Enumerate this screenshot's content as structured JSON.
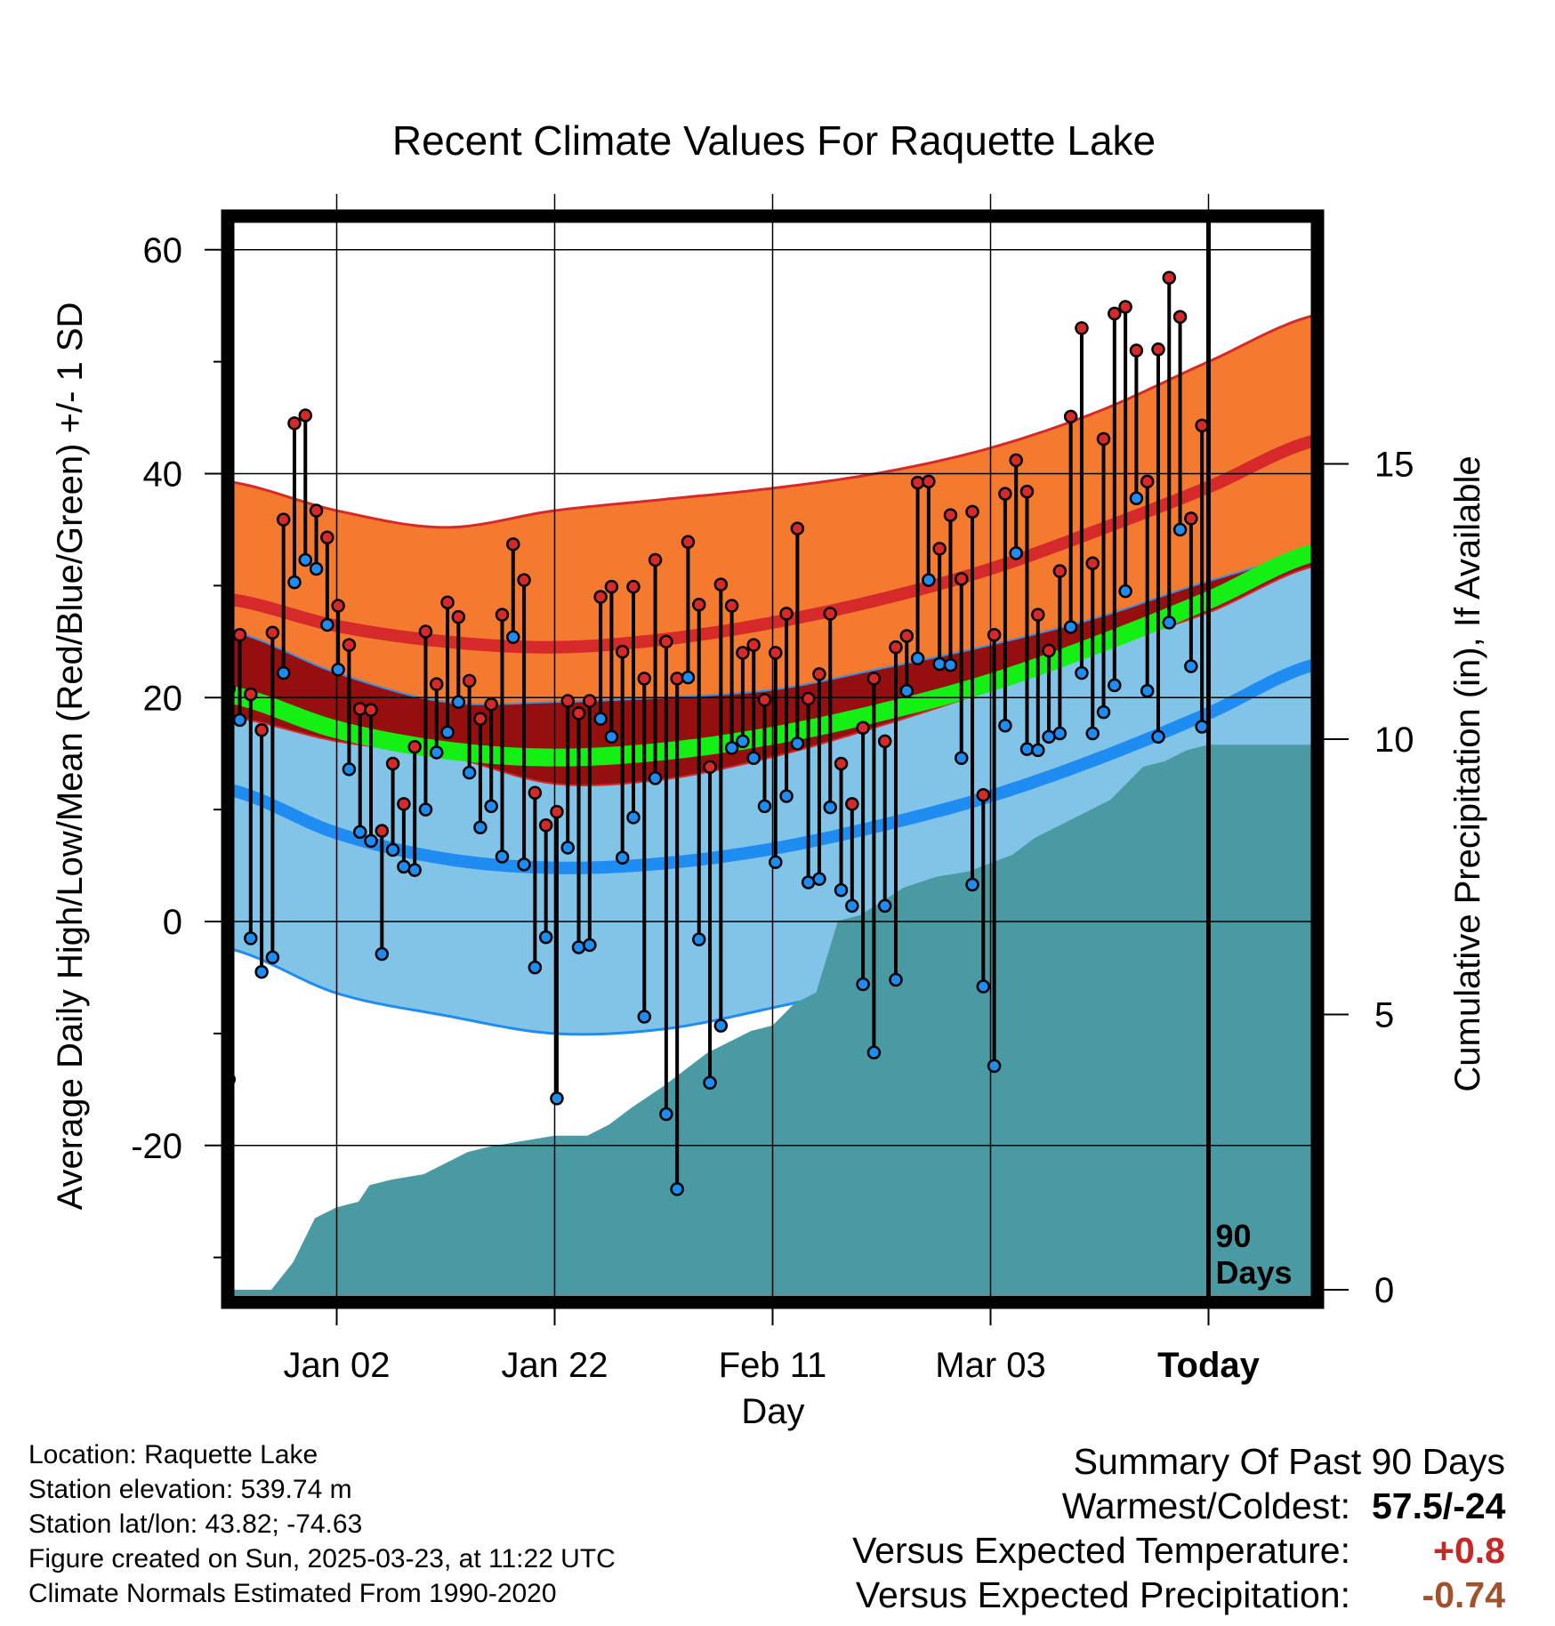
{
  "chart_data": {
    "type": "line",
    "title": "Recent Climate Values For Raquette Lake",
    "xlabel": "Day",
    "ylabel": "Average Daily High/Low/Mean (Red/Blue/Green) +/- 1 SD",
    "y2label": "Cumulative Precipitation (in), If Available",
    "ylim": [
      -34,
      63
    ],
    "y2lim": [
      0,
      19.5
    ],
    "xlim": [
      -10,
      90
    ],
    "yticks": [
      "60",
      "40",
      "20",
      "0",
      "-20"
    ],
    "y2ticks": [
      "15",
      "10",
      "5",
      "0"
    ],
    "xticks": [
      {
        "day": 0,
        "label": "Jan 02"
      },
      {
        "day": 20,
        "label": "Jan 22"
      },
      {
        "day": 40,
        "label": "Feb 11"
      },
      {
        "day": 60,
        "label": "Mar 03"
      },
      {
        "day": 80,
        "label": "Today"
      }
    ],
    "today_marker": {
      "day": 80,
      "label1": "90",
      "label2": "Days"
    },
    "colors": {
      "high_band": "#f47a2f",
      "high_mean": "#d62a2a",
      "low_band": "#82c3e8",
      "low_mean": "#1e8cf0",
      "overlap": "#960f0f",
      "mean": "#14f014",
      "precip": "#4a9aa3",
      "frame": "#000000"
    },
    "normals": {
      "days": [
        -10,
        0,
        10,
        20,
        30,
        40,
        50,
        60,
        70,
        80,
        90
      ],
      "high_mean": [
        28.8,
        26.4,
        25.0,
        24.5,
        25.2,
        26.7,
        28.8,
        31.5,
        35.0,
        38.8,
        43.0
      ],
      "high_sd": [
        10.5,
        10.3,
        10.2,
        12.2,
        12.5,
        12.0,
        11.3,
        10.8,
        10.6,
        11.2,
        11.2
      ],
      "low_mean": [
        11.8,
        7.9,
        5.6,
        4.8,
        5.2,
        6.5,
        8.6,
        11.2,
        14.6,
        18.6,
        23.0
      ],
      "low_sd": [
        14.2,
        14.3,
        14.0,
        14.8,
        14.8,
        14.2,
        14.0,
        13.5,
        12.6,
        11.8,
        9.8
      ]
    },
    "series": [
      {
        "name": "high",
        "values": [
          20.8,
          25.6,
          20.3,
          17.1,
          25.8,
          35.9,
          44.5,
          45.2,
          36.7,
          34.3,
          28.2,
          24.7,
          19.0,
          18.9,
          8.1,
          14.1,
          10.5,
          15.6,
          25.9,
          21.2,
          28.5,
          27.2,
          21.5,
          18.1,
          19.4,
          27.4,
          33.7,
          30.5,
          11.5,
          8.6,
          9.8,
          19.7,
          18.6,
          19.7,
          29.0,
          29.9,
          24.1,
          29.9,
          21.7,
          32.3,
          25.0,
          21.7,
          33.9,
          28.3,
          13.8,
          30.1,
          28.2,
          24.0,
          24.7,
          19.8,
          24.0,
          27.5,
          35.1,
          19.9,
          22.1,
          27.5,
          14.1,
          10.5,
          17.3,
          21.7,
          16.1,
          24.5,
          25.5,
          39.2,
          39.3,
          33.3,
          36.3,
          30.6,
          36.6,
          11.3,
          25.6,
          38.2,
          41.2,
          38.4,
          27.4,
          24.2,
          31.3,
          45.1,
          53.0,
          32.0,
          43.1,
          54.3,
          54.9,
          51.0,
          39.3,
          51.1,
          57.5,
          54.0,
          36.0,
          44.3
        ]
      },
      {
        "name": "low",
        "values": [
          -14.1,
          18.0,
          -1.5,
          -4.5,
          -3.2,
          22.2,
          30.3,
          32.3,
          31.5,
          26.5,
          22.5,
          13.6,
          8.0,
          7.2,
          -2.9,
          6.4,
          4.9,
          4.6,
          10.0,
          15.1,
          16.9,
          19.6,
          13.3,
          8.4,
          10.3,
          5.8,
          25.4,
          5.1,
          -4.1,
          -1.4,
          -15.8,
          6.6,
          -2.3,
          -2.1,
          18.1,
          16.5,
          5.7,
          9.3,
          -8.5,
          12.8,
          -17.2,
          -23.9,
          21.8,
          -1.6,
          -14.4,
          -9.3,
          15.5,
          16.1,
          14.6,
          10.3,
          5.3,
          11.2,
          15.9,
          3.5,
          3.8,
          10.2,
          2.8,
          1.4,
          -5.6,
          -11.7,
          1.4,
          -5.2,
          20.6,
          23.5,
          30.5,
          23.0,
          22.9,
          14.6,
          3.3,
          -5.8,
          -12.9,
          17.5,
          32.9,
          15.4,
          15.3,
          16.5,
          16.8,
          26.3,
          22.2,
          16.8,
          18.7,
          21.1,
          29.5,
          37.8,
          20.6,
          16.5,
          26.7,
          35.0,
          22.8,
          17.4
        ]
      }
    ],
    "precip_cumulative": {
      "days": [
        -10,
        -6,
        -4,
        -2,
        0,
        2,
        3,
        5,
        8,
        10,
        12,
        14,
        17,
        20,
        23,
        25,
        27,
        30,
        32,
        34,
        36,
        38,
        40,
        42,
        44,
        46,
        48,
        52,
        55,
        58,
        62,
        64,
        66,
        69,
        71,
        74,
        76,
        78,
        80,
        84,
        90
      ],
      "values": [
        0,
        0,
        0.5,
        1.3,
        1.5,
        1.6,
        1.9,
        2.0,
        2.1,
        2.3,
        2.5,
        2.6,
        2.7,
        2.8,
        2.8,
        3.0,
        3.3,
        3.7,
        4.0,
        4.3,
        4.5,
        4.7,
        4.8,
        5.2,
        5.4,
        6.7,
        6.8,
        7.3,
        7.5,
        7.6,
        7.9,
        8.2,
        8.4,
        8.7,
        8.9,
        9.5,
        9.6,
        9.8,
        9.9,
        9.9,
        9.9
      ]
    }
  },
  "info": {
    "location": "Location: Raquette Lake",
    "elevation": "Station elevation: 539.74 m",
    "latlon": "Station lat/lon: 43.82; -74.63",
    "created": "Figure created on Sun, 2025-03-23, at 11:22 UTC",
    "normals": "Climate Normals Estimated From 1990-2020"
  },
  "summary": {
    "title": "Summary Of Past 90 Days",
    "warm_cold_label": "Warmest/Coldest:",
    "warm_cold_value": "57.5/-24",
    "temp_label": "Versus Expected Temperature:",
    "temp_value": "+0.8",
    "temp_color": "#c62828",
    "precip_label": "Versus Expected Precipitation:",
    "precip_value": "-0.74",
    "precip_color": "#a0522d"
  }
}
